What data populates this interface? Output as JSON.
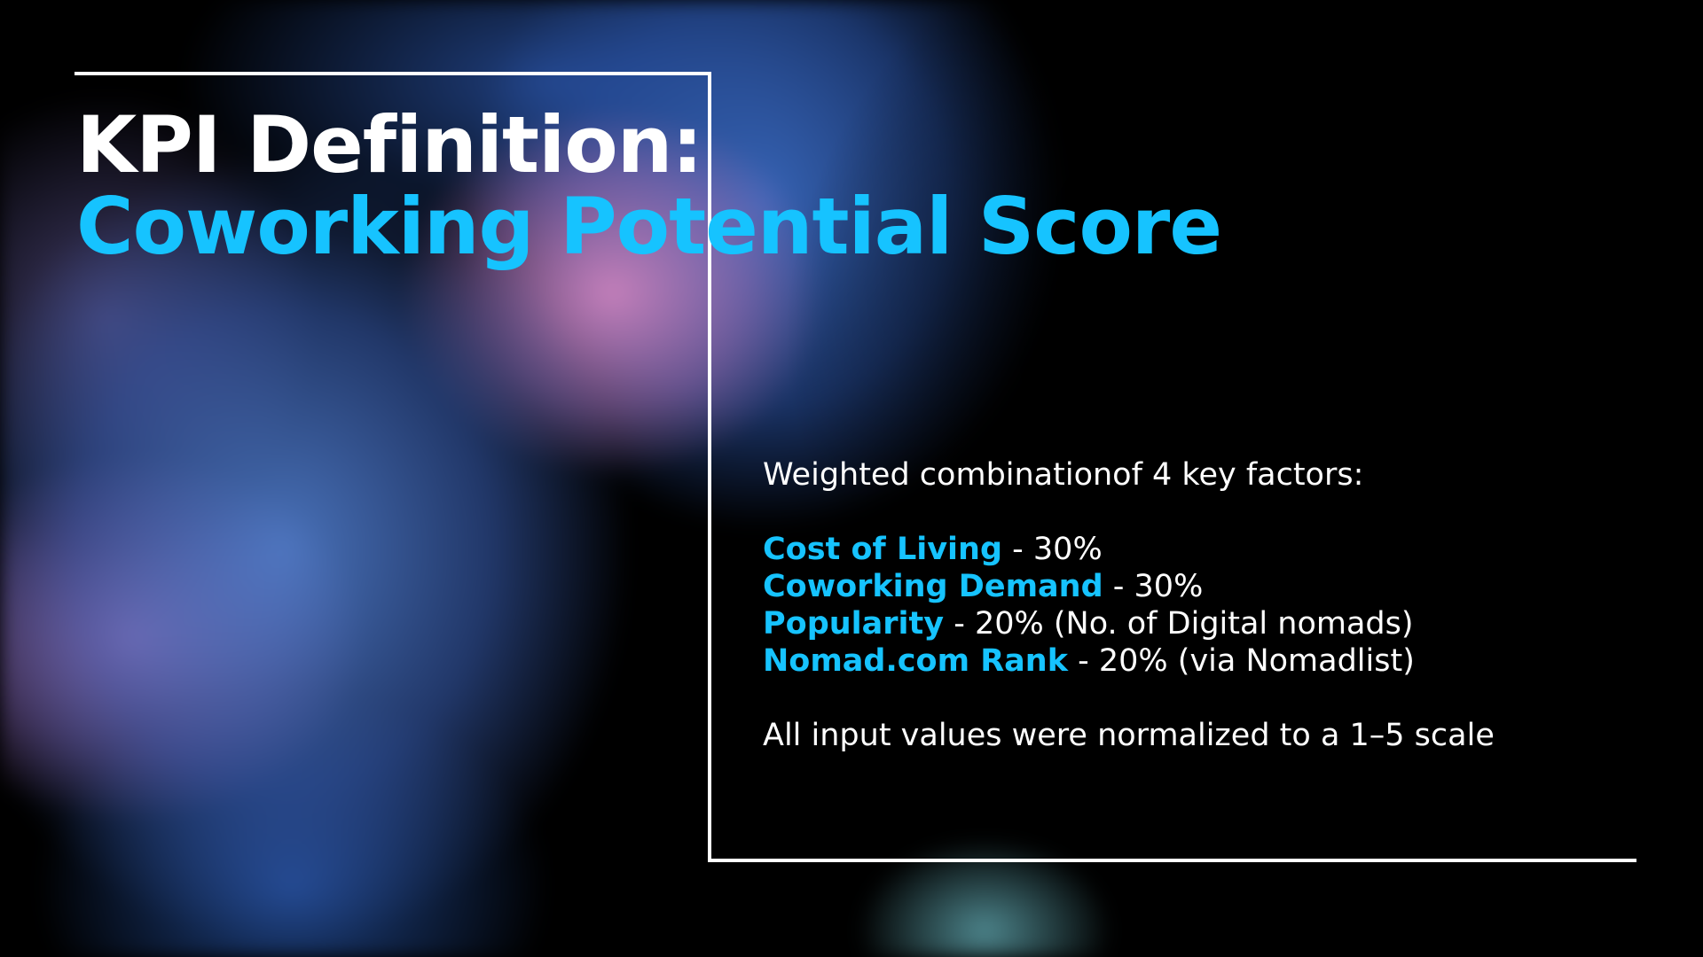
{
  "slide": {
    "title_line1": "KPI Definition:",
    "title_line2": "Coworking Potential Score",
    "intro": "Weighted combinationof 4 key factors:",
    "factors": [
      {
        "name": "Cost of Living",
        "detail": " - 30%"
      },
      {
        "name": "Coworking Demand",
        "detail": " - 30%"
      },
      {
        "name": "Popularity",
        "detail": " - 20% (No. of Digital nomads)"
      },
      {
        "name": "Nomad.com Rank",
        "detail": " - 20% (via Nomadlist)"
      }
    ],
    "note": "All input values were normalized to a 1–5 scale"
  },
  "colors": {
    "accent": "#16c3ff",
    "text": "#ffffff",
    "background": "#000000"
  }
}
